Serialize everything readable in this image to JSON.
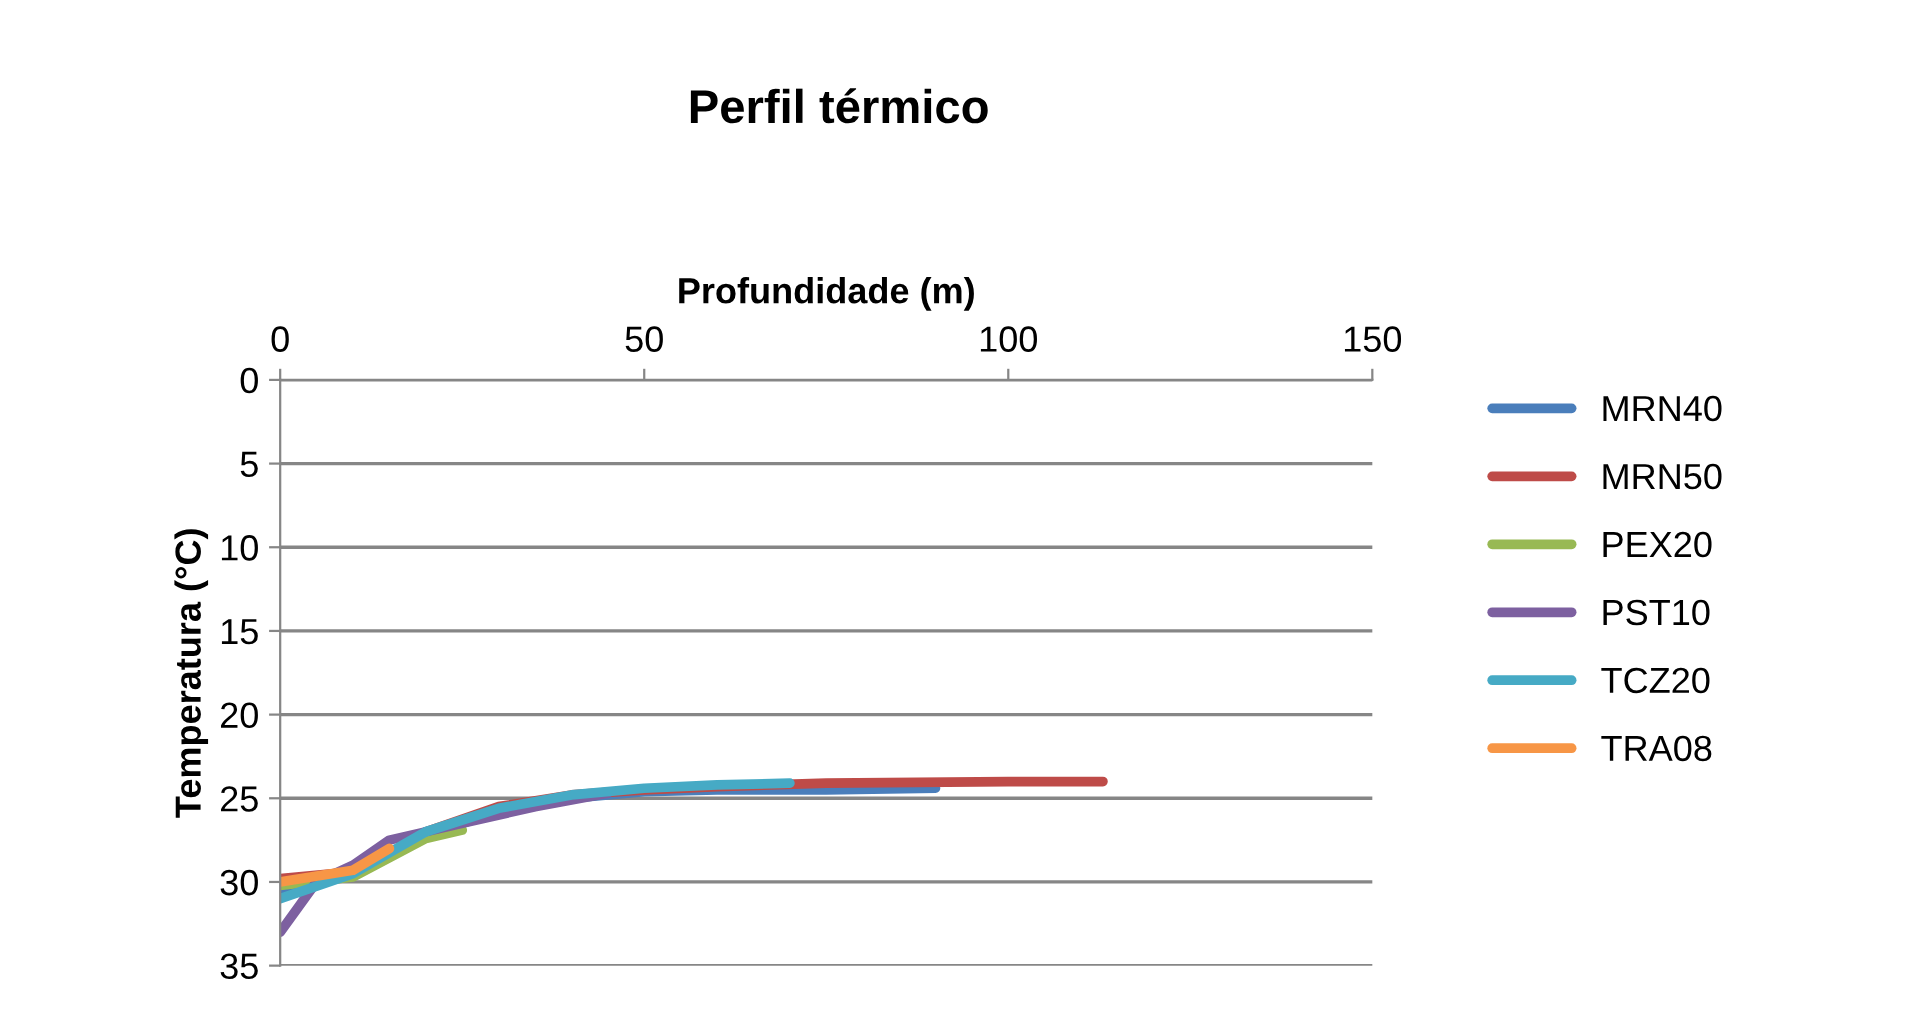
{
  "chart_data": {
    "type": "line",
    "title": "Perfil térmico",
    "xlabel": "Profundidade (m)",
    "ylabel": "Temperatura (°C)",
    "xlim": [
      0,
      150
    ],
    "xticks": [
      0,
      50,
      100,
      150
    ],
    "ylim": [
      35,
      0
    ],
    "yticks": [
      0,
      5,
      10,
      15,
      20,
      25,
      30,
      35
    ],
    "grid": "y",
    "legend": "right",
    "marker": "none",
    "line_style": "solid",
    "series": [
      {
        "name": "MRN40",
        "color": "#4a7ebb",
        "x": [
          0,
          10,
          20,
          30,
          40,
          50,
          60,
          75,
          90
        ],
        "values": [
          30.5,
          29.5,
          27.2,
          25.8,
          25,
          24.6,
          24.5,
          24.5,
          24.4
        ]
      },
      {
        "name": "MRN50",
        "color": "#be4b48",
        "x": [
          0,
          10,
          15,
          20,
          30,
          40,
          50,
          60,
          75,
          100,
          113
        ],
        "values": [
          29.8,
          29.4,
          28.5,
          27,
          25.5,
          24.8,
          24.5,
          24.3,
          24.1,
          24,
          24
        ]
      },
      {
        "name": "PEX20",
        "color": "#98b954",
        "x": [
          0,
          10,
          20,
          25
        ],
        "values": [
          30.2,
          29.7,
          27.4,
          26.9
        ]
      },
      {
        "name": "PST10",
        "color": "#7d60a0",
        "x": [
          0,
          5,
          10,
          15,
          25,
          35,
          45
        ],
        "values": [
          33,
          30,
          29,
          27.5,
          26.5,
          25.5,
          24.7
        ]
      },
      {
        "name": "TCZ20",
        "color": "#46aac5",
        "x": [
          0,
          10,
          20,
          30,
          40,
          50,
          60,
          70
        ],
        "values": [
          31,
          29.5,
          27,
          25.6,
          24.8,
          24.4,
          24.2,
          24.1
        ]
      },
      {
        "name": "TRA08",
        "color": "#f79646",
        "x": [
          0,
          10,
          15
        ],
        "values": [
          30,
          29.3,
          28
        ]
      }
    ]
  }
}
